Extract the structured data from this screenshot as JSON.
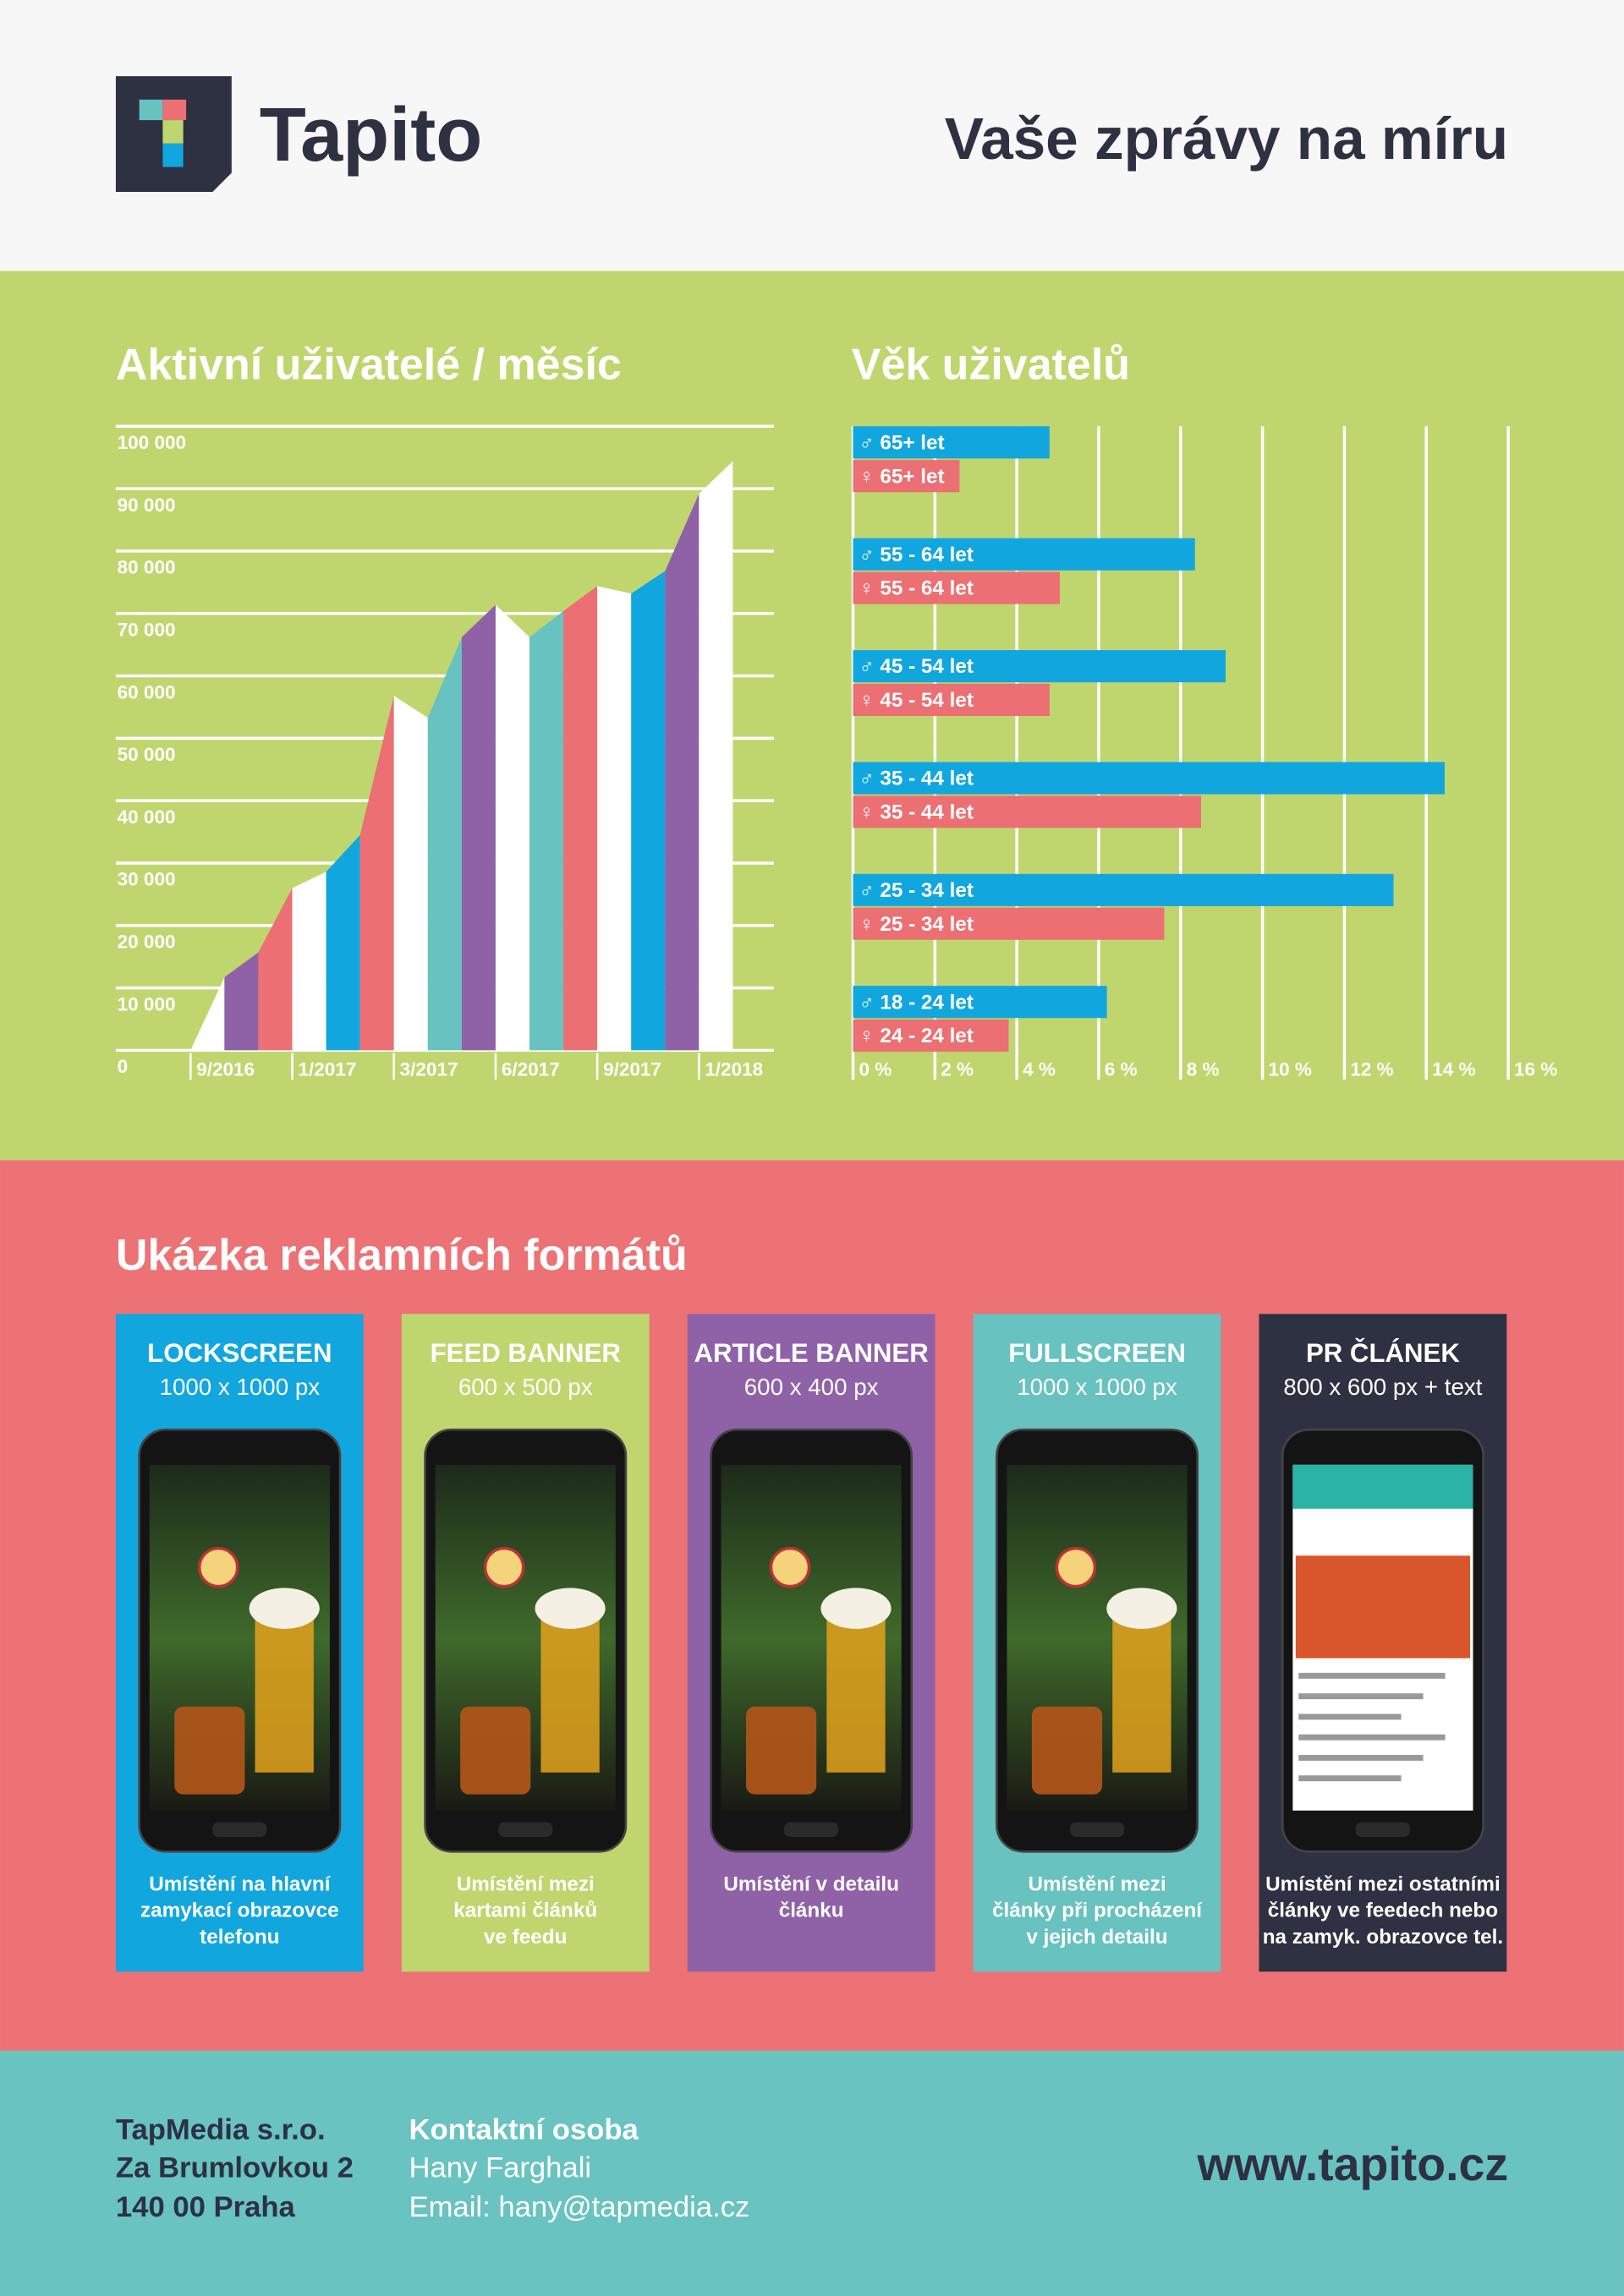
{
  "header": {
    "brand": "Tapito",
    "headline": "Vaše zprávy na míru"
  },
  "chart_data": [
    {
      "type": "area",
      "title": "Aktivní uživatelé / měsíc",
      "values": [
        0,
        11700,
        15700,
        26000,
        28600,
        34500,
        56800,
        53300,
        66200,
        71400,
        66200,
        70400,
        74400,
        73200,
        76800,
        89200,
        94400
      ],
      "colors": [
        "#ffffff",
        "#8f62a8",
        "#ec6f73",
        "#ffffff",
        "#12a6df",
        "#ec6f73",
        "#ffffff",
        "#67c2c0",
        "#8f62a8",
        "#ffffff",
        "#67c2c0",
        "#ec6f73",
        "#ffffff",
        "#12a6df",
        "#8f62a8",
        "#ffffff"
      ],
      "ylim": [
        0,
        100000
      ],
      "yticks": [
        0,
        {
          "value": 10000,
          "label": "10 000"
        },
        {
          "value": 20000,
          "label": "20 000"
        },
        {
          "value": 30000,
          "label": "30 000"
        },
        {
          "value": 40000,
          "label": "40 000"
        },
        {
          "value": 50000,
          "label": "50 000"
        },
        {
          "value": 60000,
          "label": "60 000"
        },
        {
          "value": 70000,
          "label": "70 000"
        },
        {
          "value": 80000,
          "label": "80 000"
        },
        {
          "value": 90000,
          "label": "90 000"
        },
        {
          "value": 100000,
          "label": "100 000"
        }
      ],
      "xticks": [
        {
          "value": 0,
          "label": "9/2016"
        },
        {
          "value": 3,
          "label": "1/2017"
        },
        {
          "value": 6,
          "label": "3/2017"
        },
        {
          "value": 9,
          "label": "6/2017"
        },
        {
          "value": 12,
          "label": "9/2017"
        },
        {
          "value": 15,
          "label": "1/2018"
        }
      ],
      "grid": true
    },
    {
      "type": "hbar",
      "title": "Věk uživatelů",
      "categories": [
        "♂ 65+ let",
        "♀ 65+ let",
        "♂ 55 - 64 let",
        "♀ 55 - 64 let",
        "♂ 45 - 54 let",
        "♀ 45 - 54 let",
        "♂ 35 - 44 let",
        "♀ 35 - 44 let",
        "♂ 25 - 34 let",
        "♀ 25 - 34 let",
        "♂ 18 - 24 let",
        "♀ 24 - 24 let"
      ],
      "values": [
        4.8,
        2.6,
        8.35,
        5.05,
        9.1,
        4.8,
        14.45,
        8.5,
        13.2,
        7.6,
        6.2,
        3.8
      ],
      "colors": [
        "#12a6df",
        "#ec6f73",
        "#12a6df",
        "#ec6f73",
        "#12a6df",
        "#ec6f73",
        "#12a6df",
        "#ec6f73",
        "#12a6df",
        "#ec6f73",
        "#12a6df",
        "#ec6f73"
      ],
      "xlim": [
        0,
        16
      ],
      "xticks": [
        {
          "value": 0,
          "label": "0 %"
        },
        {
          "value": 2,
          "label": "2 %"
        },
        {
          "value": 4,
          "label": "4 %"
        },
        {
          "value": 6,
          "label": "6 %"
        },
        {
          "value": 8,
          "label": "8 %"
        },
        {
          "value": 10,
          "label": "10 %"
        },
        {
          "value": 12,
          "label": "12 %"
        },
        {
          "value": 14,
          "label": "14 %"
        },
        {
          "value": 16,
          "label": "16 %"
        }
      ],
      "grid": true
    }
  ],
  "formats": {
    "title": "Ukázka reklamních formátů",
    "items": [
      {
        "name": "LOCKSCREEN",
        "size": "1000 x 1000 px",
        "color": "#12a6df",
        "description": [
          "Umístění na hlavní",
          "zamykací obrazovce",
          "telefonu"
        ]
      },
      {
        "name": "FEED BANNER",
        "size": "600 x 500 px",
        "color": "#bfd66f",
        "description": [
          "Umístění mezi",
          "kartami článků",
          "ve feedu"
        ]
      },
      {
        "name": "ARTICLE BANNER",
        "size": "600 x 400 px",
        "color": "#8f62a8",
        "description": [
          "Umístění v detailu",
          "článku"
        ]
      },
      {
        "name": "FULLSCREEN",
        "size": "1000 x 1000 px",
        "color": "#67c2c0",
        "description": [
          "Umístění mezi",
          "články při procházení",
          "v jejich detailu"
        ]
      },
      {
        "name": "PR ČLÁNEK",
        "size": "800 x 600 px + text",
        "color": "#2d3142",
        "description": [
          "Umístění mezi ostatními",
          "články ve feedech nebo",
          "na zamyk. obrazovce tel."
        ]
      }
    ]
  },
  "footer": {
    "company": [
      "TapMedia s.r.o.",
      "Za Brumlovkou 2",
      "140 00 Praha"
    ],
    "contact_title": "Kontaktní osoba",
    "contact_name": "Hany Farghali",
    "contact_email": "Email: hany@tapmedia.cz",
    "url": "www.tapito.cz"
  }
}
